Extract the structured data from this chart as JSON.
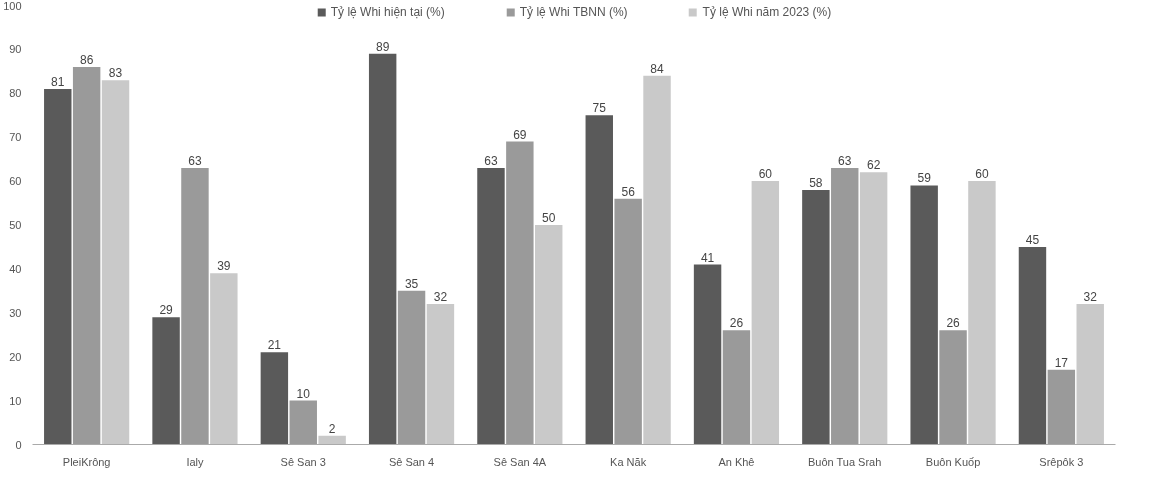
{
  "chart_data": {
    "type": "bar",
    "categories": [
      "PleiKrông",
      "Ialy",
      "Sê San 3",
      "Sê San 4",
      "Sê San 4A",
      "Ka Năk",
      "An Khê",
      "Buôn Tua Srah",
      "Buôn Kuốp",
      "Srêpôk 3"
    ],
    "series": [
      {
        "name": "Tỷ lệ Whi hiện tại (%)",
        "color": "#5a5a5a",
        "values": [
          81,
          29,
          21,
          89,
          63,
          75,
          41,
          58,
          59,
          45
        ]
      },
      {
        "name": "Tỷ lệ Whi TBNN (%)",
        "color": "#9a9a9a",
        "values": [
          86,
          63,
          10,
          35,
          69,
          56,
          26,
          63,
          26,
          17
        ]
      },
      {
        "name": "Tỷ lệ Whi năm 2023 (%)",
        "color": "#c9c9c9",
        "values": [
          83,
          39,
          2,
          32,
          50,
          84,
          60,
          62,
          60,
          32
        ]
      }
    ],
    "ylim": [
      0,
      100
    ],
    "yticks": [
      0,
      10,
      20,
      30,
      40,
      50,
      60,
      70,
      80,
      90,
      100
    ],
    "data_labels": true,
    "legend": "top",
    "grid": false
  }
}
